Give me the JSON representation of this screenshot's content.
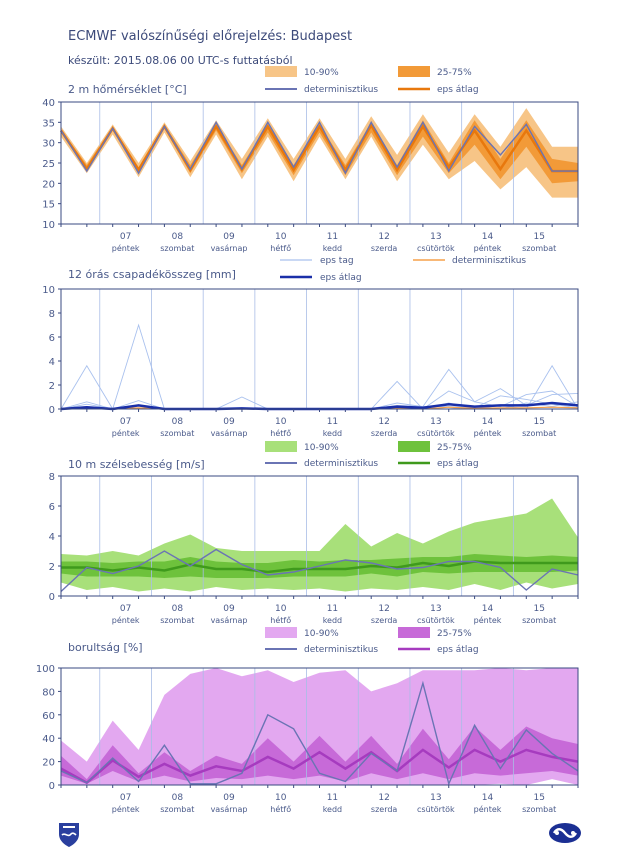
{
  "header": {
    "title": "ECMWF valószínűségi előrejelzés: Budapest",
    "subtitle": "készült: 2015.08.06 00 UTC-s futtatásból"
  },
  "x_days": [
    {
      "num": "07",
      "name": "péntek"
    },
    {
      "num": "08",
      "name": "szombat"
    },
    {
      "num": "09",
      "name": "vasárnap"
    },
    {
      "num": "10",
      "name": "hétfő"
    },
    {
      "num": "11",
      "name": "kedd"
    },
    {
      "num": "12",
      "name": "szerda"
    },
    {
      "num": "13",
      "name": "csütörtök"
    },
    {
      "num": "14",
      "name": "péntek"
    },
    {
      "num": "15",
      "name": "szombat"
    }
  ],
  "colors": {
    "temp_light": "#f7c587",
    "temp_dark": "#f29a38",
    "temp_mean": "#e8780d",
    "wind_light": "#a8e07a",
    "wind_dark": "#6ec23c",
    "wind_mean": "#3f9a1c",
    "cloud_light": "#e3a8f0",
    "cloud_dark": "#c76ad8",
    "cloud_mean": "#a63bbf",
    "det": "#6a74b4",
    "member": "#a9c1ee",
    "precip_mean": "#1a2fa8",
    "precip_det": "#f5a04a",
    "axis": "#3a4a80",
    "grid": "#a9bde6"
  },
  "chart_data": [
    {
      "type": "area",
      "title": "2 m hőmérséklet [°C]",
      "ylim": [
        10,
        40
      ],
      "yticks": [
        10,
        15,
        20,
        25,
        30,
        35,
        40
      ],
      "xlim": [
        0,
        40
      ],
      "legend": {
        "light": "10-90%",
        "dark": "25-75%",
        "det": "determinisztikus",
        "mean": "eps átlag"
      },
      "x": [
        0,
        2,
        4,
        6,
        8,
        10,
        12,
        14,
        16,
        18,
        20,
        22,
        24,
        26,
        28,
        30,
        32,
        34,
        36,
        38,
        40
      ],
      "p10": [
        31.5,
        22.5,
        32,
        21.5,
        32.5,
        21.5,
        32,
        21,
        31.5,
        20.5,
        31.5,
        21,
        31.5,
        20.5,
        29.5,
        21,
        25.5,
        18.5,
        24,
        16.5,
        16.5
      ],
      "p25": [
        32.5,
        23,
        33,
        22.5,
        33.5,
        22.5,
        33,
        22.5,
        32.5,
        22,
        32.5,
        22,
        32.5,
        22,
        31.5,
        22.5,
        29.5,
        21,
        29,
        20,
        20.5
      ],
      "p75": [
        33.3,
        24.5,
        34,
        24,
        34.5,
        24.5,
        34.5,
        24.5,
        34.5,
        24.5,
        34.5,
        24.5,
        35,
        24.5,
        35.5,
        25,
        35.5,
        26,
        35.5,
        26,
        25
      ],
      "p90": [
        34,
        25,
        34.5,
        25,
        35,
        25.5,
        35.5,
        26,
        36,
        26,
        36,
        26,
        36.5,
        27,
        37,
        27.5,
        37,
        29,
        38.5,
        29,
        29
      ],
      "mean": [
        33,
        23.5,
        33.5,
        23.3,
        34,
        23.3,
        34,
        23.5,
        34,
        23.3,
        34,
        23.3,
        34.3,
        23.3,
        34,
        24,
        33,
        23.5,
        33,
        23,
        23
      ],
      "det": [
        33,
        23,
        33.5,
        22.5,
        34,
        23.5,
        35,
        23.5,
        35,
        24,
        35,
        22.5,
        35,
        24,
        35,
        23,
        34,
        27,
        34.5,
        23,
        23
      ]
    },
    {
      "type": "line",
      "title": "12 órás csapadékösszeg [mm]",
      "ylim": [
        0,
        10
      ],
      "yticks": [
        0,
        2,
        4,
        6,
        8,
        10
      ],
      "xlim": [
        0,
        40
      ],
      "legend": {
        "member": "eps tag",
        "det": "determinisztikus",
        "mean": "eps átlag"
      },
      "x": [
        0,
        2,
        4,
        6,
        8,
        10,
        12,
        14,
        16,
        18,
        20,
        22,
        24,
        26,
        28,
        30,
        32,
        34,
        36,
        38,
        40
      ],
      "members": [
        [
          0,
          3.6,
          0,
          0,
          0,
          0,
          0,
          0,
          0,
          0,
          0,
          0,
          0,
          0,
          0,
          0.5,
          0,
          0.3,
          0,
          3.6,
          0
        ],
        [
          0,
          0.6,
          0,
          7,
          0,
          0,
          0,
          1,
          0,
          0,
          0,
          0,
          0,
          2.3,
          0,
          0,
          0.2,
          0,
          0.5,
          0.2,
          0.6
        ],
        [
          0,
          0.4,
          0,
          0.7,
          0,
          0,
          0,
          0,
          0,
          0,
          0,
          0,
          0,
          0.5,
          0.2,
          3.3,
          0.6,
          0.2,
          1.2,
          1.5,
          0.2
        ],
        [
          0,
          0.2,
          0,
          0,
          0,
          0,
          0,
          0,
          0,
          0,
          0,
          0,
          0,
          0,
          0,
          1.5,
          0.6,
          1.7,
          0.3,
          1.2,
          1.3
        ],
        [
          0,
          0,
          0,
          0,
          0,
          0,
          0,
          0,
          0,
          0,
          0,
          0,
          0,
          0.3,
          0.2,
          0.2,
          0.1,
          1.1,
          0.8,
          0.4,
          0.1
        ]
      ],
      "mean": [
        0,
        0.15,
        0,
        0.3,
        0,
        0,
        0,
        0.05,
        0,
        0,
        0,
        0,
        0,
        0.2,
        0.1,
        0.4,
        0.2,
        0.3,
        0.3,
        0.5,
        0.3
      ],
      "det": [
        0,
        0.05,
        0,
        0.1,
        0,
        0,
        0,
        0,
        0,
        0,
        0,
        0,
        0,
        0.05,
        0,
        0.15,
        0.05,
        0.1,
        0.1,
        0.15,
        0.1
      ]
    },
    {
      "type": "area",
      "title": "10 m szélsebesség [m/s]",
      "ylim": [
        0,
        8
      ],
      "yticks": [
        0,
        2,
        4,
        6,
        8
      ],
      "xlim": [
        0,
        40
      ],
      "legend": {
        "light": "10-90%",
        "dark": "25-75%",
        "det": "determinisztikus",
        "mean": "eps átlag"
      },
      "x": [
        0,
        2,
        4,
        6,
        8,
        10,
        12,
        14,
        16,
        18,
        20,
        22,
        24,
        26,
        28,
        30,
        32,
        34,
        36,
        38,
        40
      ],
      "p10": [
        0.9,
        0.4,
        0.6,
        0.3,
        0.5,
        0.3,
        0.6,
        0.4,
        0.5,
        0.4,
        0.5,
        0.3,
        0.5,
        0.4,
        0.6,
        0.4,
        0.8,
        0.4,
        0.9,
        0.5,
        0.8
      ],
      "p25": [
        1.5,
        1.3,
        1.3,
        1.3,
        1.2,
        1.3,
        1.2,
        1.2,
        1.2,
        1.3,
        1.3,
        1.3,
        1.5,
        1.3,
        1.6,
        1.5,
        1.6,
        1.6,
        1.6,
        1.6,
        1.7
      ],
      "p75": [
        2.3,
        2.3,
        2.2,
        2.3,
        2.3,
        2.6,
        2.3,
        2.2,
        2.2,
        2.4,
        2.3,
        2.4,
        2.4,
        2.5,
        2.6,
        2.6,
        2.8,
        2.7,
        2.6,
        2.7,
        2.6
      ],
      "p90": [
        2.8,
        2.7,
        3,
        2.7,
        3.5,
        4.1,
        3.2,
        3,
        3,
        3,
        3,
        4.8,
        3.3,
        4.2,
        3.5,
        4.3,
        4.9,
        5.2,
        5.5,
        6.5,
        3.9
      ],
      "mean": [
        1.9,
        1.9,
        1.7,
        1.9,
        1.7,
        2.1,
        1.8,
        1.8,
        1.6,
        1.8,
        1.8,
        1.8,
        2,
        1.9,
        2.2,
        2,
        2.3,
        2.2,
        2.2,
        2.2,
        2.2
      ],
      "det": [
        0.3,
        1.9,
        1.5,
        2,
        3,
        2,
        3.1,
        2.1,
        1.4,
        1.6,
        2,
        2.4,
        2.2,
        1.8,
        1.9,
        2.3,
        2.3,
        1.9,
        0.4,
        1.8,
        1.4
      ]
    },
    {
      "type": "area",
      "title": "borultság [%]",
      "ylim": [
        0,
        100
      ],
      "yticks": [
        0,
        20,
        40,
        60,
        80,
        100
      ],
      "xlim": [
        0,
        40
      ],
      "legend": {
        "light": "10-90%",
        "dark": "25-75%",
        "det": "determinisztikus",
        "mean": "eps átlag"
      },
      "x": [
        0,
        2,
        4,
        6,
        8,
        10,
        12,
        14,
        16,
        18,
        20,
        22,
        24,
        26,
        28,
        30,
        32,
        34,
        36,
        38,
        40
      ],
      "p10": [
        0,
        0,
        0,
        0,
        0,
        0,
        0,
        0,
        0,
        0,
        0,
        0,
        0,
        0,
        0,
        0,
        0,
        1,
        0,
        5,
        0
      ],
      "p25": [
        8,
        1,
        12,
        3,
        8,
        3,
        6,
        5,
        8,
        5,
        8,
        3,
        10,
        5,
        10,
        5,
        10,
        8,
        10,
        12,
        8
      ],
      "p75": [
        25,
        5,
        34,
        10,
        28,
        12,
        25,
        18,
        40,
        20,
        42,
        20,
        42,
        18,
        48,
        22,
        50,
        30,
        50,
        40,
        35
      ],
      "p90": [
        38,
        20,
        55,
        30,
        77,
        95,
        100,
        93,
        98,
        88,
        96,
        98,
        80,
        87,
        98,
        98,
        98,
        100,
        98,
        100,
        100
      ],
      "mean": [
        14,
        2,
        21,
        7,
        18,
        8,
        16,
        12,
        24,
        14,
        28,
        14,
        28,
        12,
        30,
        15,
        30,
        20,
        30,
        24,
        20
      ],
      "det": [
        12,
        2,
        23,
        3,
        34,
        1,
        1,
        10,
        60,
        48,
        10,
        3,
        27,
        12,
        87,
        1,
        51,
        14,
        47,
        27,
        12
      ]
    }
  ]
}
